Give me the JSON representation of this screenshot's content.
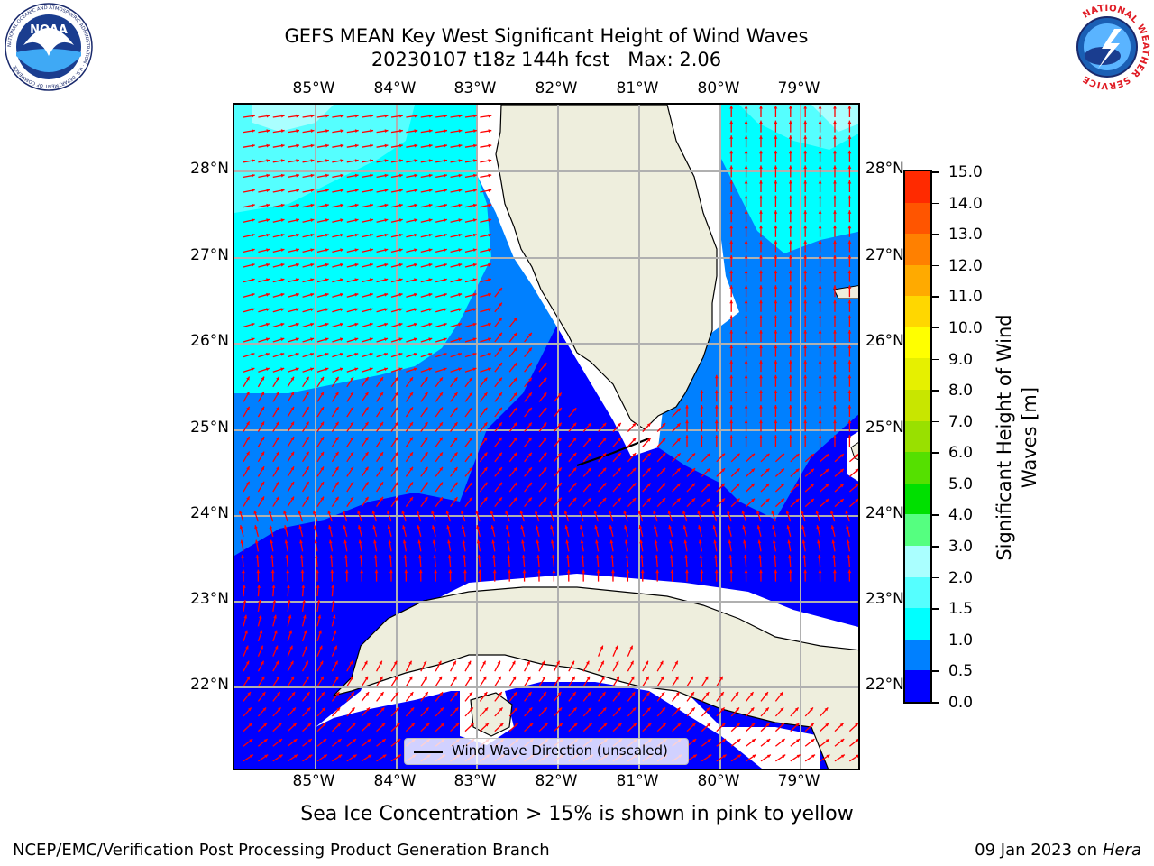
{
  "title": {
    "line1": "GEFS MEAN Key West Significant Height of Wind Waves",
    "line2": "20230107 t18z 144h fcst   Max: 2.06"
  },
  "logos": {
    "left": "noaa-logo",
    "right": "nws-logo",
    "left_text": "NOAA",
    "right_ring_text": "NATIONAL WEATHER SERVICE",
    "left_ring_text": "NATIONAL OCEANIC AND ATMOSPHERIC ADMINISTRATION · U.S. DEPARTMENT OF COMMERCE"
  },
  "map": {
    "lon_labels": [
      "85°W",
      "84°W",
      "83°W",
      "82°W",
      "81°W",
      "80°W",
      "79°W"
    ],
    "lat_labels": [
      "28°N",
      "27°N",
      "26°N",
      "25°N",
      "24°N",
      "23°N",
      "22°N"
    ],
    "legend_label": "Wind Wave Direction (unscaled)",
    "colors": {
      "land": "#eeeedd",
      "coast": "#000000",
      "grid": "#b0b0b0",
      "arrow": "#ff0000",
      "nodata": "#ffffff"
    }
  },
  "colorbar": {
    "title": "Significant Height of Wind Waves [m]",
    "title_line1": "Significant Height of Wind",
    "title_line2": "Waves [m]",
    "ticks": [
      "0.0",
      "0.5",
      "1.0",
      "1.5",
      "2.0",
      "3.0",
      "4.0",
      "5.0",
      "6.0",
      "7.0",
      "8.0",
      "9.0",
      "10.0",
      "11.0",
      "12.0",
      "13.0",
      "14.0",
      "15.0"
    ],
    "colors": [
      "#0000ff",
      "#0080ff",
      "#00ffff",
      "#55ffff",
      "#aaffff",
      "#55ff80",
      "#00e000",
      "#55e000",
      "#99e000",
      "#c8e600",
      "#e6f000",
      "#ffff00",
      "#ffd700",
      "#ffaa00",
      "#ff8000",
      "#ff5500",
      "#ff2a00",
      "#ff0000"
    ]
  },
  "footer": {
    "note": "Sea Ice Concentration > 15% is shown in pink to yellow",
    "left": "NCEP/EMC/Verification Post Processing Product Generation Branch",
    "right_date": "09 Jan 2023 on ",
    "right_host": "Hera"
  }
}
